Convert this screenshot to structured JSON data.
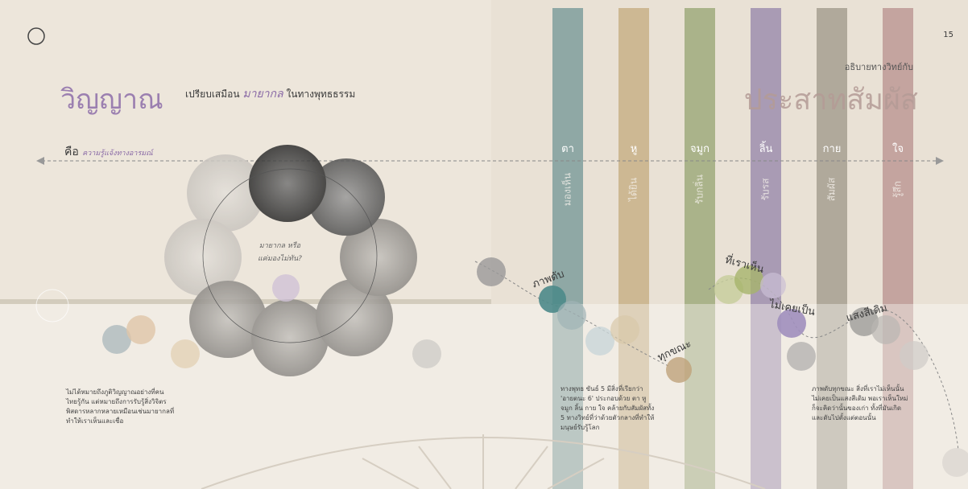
{
  "page_number": "15",
  "header": {
    "title": "วิญญาณ",
    "subtitle_prefix": "เปรียบเสมือน",
    "subtitle_emphasis": "มายากล",
    "subtitle_suffix": "ในทางพุทธธรรม"
  },
  "definition": {
    "label": "คือ",
    "text": "ความรู้แจ้งทางอารมณ์"
  },
  "ring_caption": [
    "มายากล หรือ",
    "แค่มองไม่ทัน?"
  ],
  "left_paragraph": "ไม่ได้หมายถึงภูติวิญญาณอย่างที่คนไทยรู้กัน แต่หมายถึงการรับรู้สิ่งวิจิตร พิสดารหลากหลายเหมือนเช่นมายากลที่ทำให้เราเห็นและเชื่อ",
  "right_header": {
    "kicker": "อธิบายทางวิทย์กับ",
    "title": "ประสาทสัมผัส"
  },
  "senses": [
    {
      "name": "ตา",
      "action": "มองเห็น"
    },
    {
      "name": "หู",
      "action": "ได้ยิน"
    },
    {
      "name": "จมูก",
      "action": "รับกลิ่น"
    },
    {
      "name": "ลิ้น",
      "action": "รับรส"
    },
    {
      "name": "กาย",
      "action": "สัมผัส"
    },
    {
      "name": "ใจ",
      "action": "รู้สึก"
    }
  ],
  "curve_labels": [
    "ภาพดับ",
    "ทุกขณะ",
    "ที่เราเห็น",
    "ไม่เคยเป็น",
    "แสงสีเดิม"
  ],
  "middle_paragraph": "ทางพุทธ ขันธ์ 5 มีสิ่งที่เรียกว่า 'อายตนะ 6' ประกอบด้วย ตา หู จมูก ลิ้น กาย ใจ คล้ายกับสัมผัสทั้ง 5 ทางวิทย์ที่ว่าด้วยตัวกลางที่ทำให้มนุษย์รับรู้โลก",
  "right_paragraph": "ภาพดับทุกขณะ สิ่งที่เราไม่เห็นนั้นไม่เคยเป็นแสงสีเดิม พอเราเห็นใหม่ก็จะคิดว่านั้นของเก่า ทั้งที่มันเกิดและดับไปตั้งแต่ตอนนั้น"
}
